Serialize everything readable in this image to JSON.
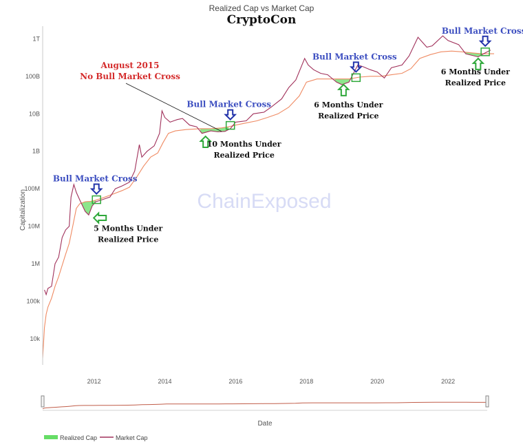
{
  "chart_data": {
    "type": "line",
    "title": "Realized Cap vs Market Cap",
    "subtitle": "CryptoCon",
    "xlabel": "Date",
    "ylabel": "Capitalization",
    "x_ticks": [
      "2012",
      "2014",
      "2016",
      "2018",
      "2020",
      "2022"
    ],
    "y_ticks": [
      {
        "label": "1T",
        "value": 1000000000000
      },
      {
        "label": "100B",
        "value": 100000000000
      },
      {
        "label": "10B",
        "value": 10000000000
      },
      {
        "label": "1B",
        "value": 1000000000
      },
      {
        "label": "100M",
        "value": 100000000
      },
      {
        "label": "10M",
        "value": 10000000
      },
      {
        "label": "1M",
        "value": 1000000
      },
      {
        "label": "100k",
        "value": 100000
      },
      {
        "label": "10k",
        "value": 10000
      }
    ],
    "y_scale": "log",
    "xlim": [
      2010.55,
      2023.3
    ],
    "ylim": [
      2000,
      2000000000000
    ],
    "grid": false,
    "legend_position": "bottom-left",
    "watermark": "ChainExposed",
    "colors": {
      "realized": "#ef8a62",
      "market": "#a0305a",
      "below_fill": "#66dd66",
      "cross_label": "#3c4ec0",
      "cross_arrow": "#2233aa",
      "under_arrow": "#2ea83a",
      "aug_label": "#d42b2b",
      "navigator": "#c05c48"
    },
    "series": [
      {
        "name": "Realized Cap",
        "points": [
          [
            2010.55,
            3000
          ],
          [
            2010.6,
            20000
          ],
          [
            2010.65,
            45000
          ],
          [
            2010.7,
            70000
          ],
          [
            2010.8,
            120000
          ],
          [
            2010.9,
            250000
          ],
          [
            2011.0,
            450000
          ],
          [
            2011.1,
            900000
          ],
          [
            2011.2,
            1800000
          ],
          [
            2011.3,
            3500000
          ],
          [
            2011.4,
            10000000
          ],
          [
            2011.5,
            30000000
          ],
          [
            2011.6,
            40000000
          ],
          [
            2011.75,
            45000000
          ],
          [
            2011.9,
            46000000
          ],
          [
            2012.0,
            48000000
          ],
          [
            2012.2,
            55000000
          ],
          [
            2012.5,
            70000000
          ],
          [
            2012.8,
            90000000
          ],
          [
            2013.0,
            110000000
          ],
          [
            2013.2,
            200000000
          ],
          [
            2013.4,
            400000000
          ],
          [
            2013.6,
            700000000
          ],
          [
            2013.8,
            900000000
          ],
          [
            2013.95,
            1700000000
          ],
          [
            2014.1,
            3000000000
          ],
          [
            2014.3,
            3500000000
          ],
          [
            2014.6,
            3800000000
          ],
          [
            2015.0,
            4000000000
          ],
          [
            2015.3,
            4000000000
          ],
          [
            2015.6,
            4200000000
          ],
          [
            2015.8,
            4500000000
          ],
          [
            2016.0,
            5000000000
          ],
          [
            2016.3,
            5700000000
          ],
          [
            2016.6,
            6500000000
          ],
          [
            2016.9,
            8000000000
          ],
          [
            2017.2,
            10000000000
          ],
          [
            2017.5,
            15000000000
          ],
          [
            2017.8,
            30000000000
          ],
          [
            2018.0,
            70000000000
          ],
          [
            2018.3,
            85000000000
          ],
          [
            2018.6,
            85000000000
          ],
          [
            2018.9,
            85000000000
          ],
          [
            2019.2,
            85000000000
          ],
          [
            2019.5,
            95000000000
          ],
          [
            2019.8,
            100000000000
          ],
          [
            2020.1,
            100000000000
          ],
          [
            2020.4,
            110000000000
          ],
          [
            2020.7,
            120000000000
          ],
          [
            2020.95,
            160000000000
          ],
          [
            2021.2,
            300000000000
          ],
          [
            2021.5,
            380000000000
          ],
          [
            2021.8,
            450000000000
          ],
          [
            2022.1,
            470000000000
          ],
          [
            2022.4,
            450000000000
          ],
          [
            2022.7,
            420000000000
          ],
          [
            2022.95,
            400000000000
          ],
          [
            2023.1,
            400000000000
          ],
          [
            2023.3,
            400000000000
          ]
        ]
      },
      {
        "name": "Market Cap",
        "points": [
          [
            2010.6,
            200000
          ],
          [
            2010.65,
            150000
          ],
          [
            2010.7,
            220000
          ],
          [
            2010.8,
            250000
          ],
          [
            2010.9,
            1000000
          ],
          [
            2011.0,
            1500000
          ],
          [
            2011.1,
            5000000
          ],
          [
            2011.2,
            8000000
          ],
          [
            2011.3,
            10000000
          ],
          [
            2011.35,
            60000000
          ],
          [
            2011.43,
            130000000
          ],
          [
            2011.5,
            80000000
          ],
          [
            2011.6,
            50000000
          ],
          [
            2011.75,
            25000000
          ],
          [
            2011.85,
            20000000
          ],
          [
            2011.95,
            35000000
          ],
          [
            2012.05,
            45000000
          ],
          [
            2012.2,
            50000000
          ],
          [
            2012.45,
            60000000
          ],
          [
            2012.6,
            100000000
          ],
          [
            2012.8,
            120000000
          ],
          [
            2013.0,
            150000000
          ],
          [
            2013.15,
            300000000
          ],
          [
            2013.28,
            1500000000
          ],
          [
            2013.35,
            700000000
          ],
          [
            2013.5,
            1000000000
          ],
          [
            2013.7,
            1400000000
          ],
          [
            2013.85,
            3000000000
          ],
          [
            2013.92,
            12000000000
          ],
          [
            2014.0,
            8000000000
          ],
          [
            2014.15,
            6000000000
          ],
          [
            2014.35,
            7000000000
          ],
          [
            2014.5,
            7500000000
          ],
          [
            2014.7,
            5000000000
          ],
          [
            2014.9,
            4500000000
          ],
          [
            2015.05,
            3000000000
          ],
          [
            2015.3,
            3500000000
          ],
          [
            2015.5,
            3300000000
          ],
          [
            2015.7,
            3400000000
          ],
          [
            2015.85,
            4000000000
          ],
          [
            2016.0,
            6000000000
          ],
          [
            2016.3,
            6500000000
          ],
          [
            2016.5,
            10000000000
          ],
          [
            2016.8,
            11000000000
          ],
          [
            2017.0,
            15000000000
          ],
          [
            2017.3,
            25000000000
          ],
          [
            2017.5,
            50000000000
          ],
          [
            2017.7,
            80000000000
          ],
          [
            2017.95,
            300000000000
          ],
          [
            2018.05,
            200000000000
          ],
          [
            2018.2,
            150000000000
          ],
          [
            2018.4,
            120000000000
          ],
          [
            2018.6,
            110000000000
          ],
          [
            2018.85,
            70000000000
          ],
          [
            2019.0,
            60000000000
          ],
          [
            2019.2,
            70000000000
          ],
          [
            2019.45,
            200000000000
          ],
          [
            2019.6,
            180000000000
          ],
          [
            2019.8,
            150000000000
          ],
          [
            2020.0,
            130000000000
          ],
          [
            2020.2,
            90000000000
          ],
          [
            2020.4,
            170000000000
          ],
          [
            2020.7,
            200000000000
          ],
          [
            2020.9,
            350000000000
          ],
          [
            2021.15,
            1100000000000
          ],
          [
            2021.4,
            600000000000
          ],
          [
            2021.55,
            650000000000
          ],
          [
            2021.85,
            1200000000000
          ],
          [
            2022.0,
            900000000000
          ],
          [
            2022.3,
            700000000000
          ],
          [
            2022.5,
            400000000000
          ],
          [
            2022.85,
            330000000000
          ],
          [
            2023.0,
            400000000000
          ],
          [
            2023.2,
            500000000000
          ]
        ]
      }
    ],
    "below_realized_fills": [
      {
        "x_start": 2011.62,
        "x_end": 2012.05
      },
      {
        "x_start": 2015.0,
        "x_end": 2015.8
      },
      {
        "x_start": 2018.8,
        "x_end": 2019.35
      },
      {
        "x_start": 2022.5,
        "x_end": 2023.0
      }
    ],
    "annotations": {
      "cross_text": "Bull Market Cross",
      "under5": [
        "5 Months Under",
        "Realized Price"
      ],
      "under10": [
        "10 Months Under",
        "Realized Price"
      ],
      "under6": [
        "6 Months Under",
        "Realized Price"
      ],
      "aug": [
        "August 2015",
        "No Bull Market Cross"
      ],
      "crosses": [
        {
          "x": 2012.07,
          "y": 50000000
        },
        {
          "x": 2015.85,
          "y": 4800000000
        },
        {
          "x": 2019.4,
          "y": 90000000000
        },
        {
          "x": 2023.05,
          "y": 440000000000
        }
      ]
    },
    "legend": [
      {
        "name": "Realized Cap",
        "swatch": "fill"
      },
      {
        "name": "Market Cap",
        "swatch": "line"
      }
    ]
  }
}
